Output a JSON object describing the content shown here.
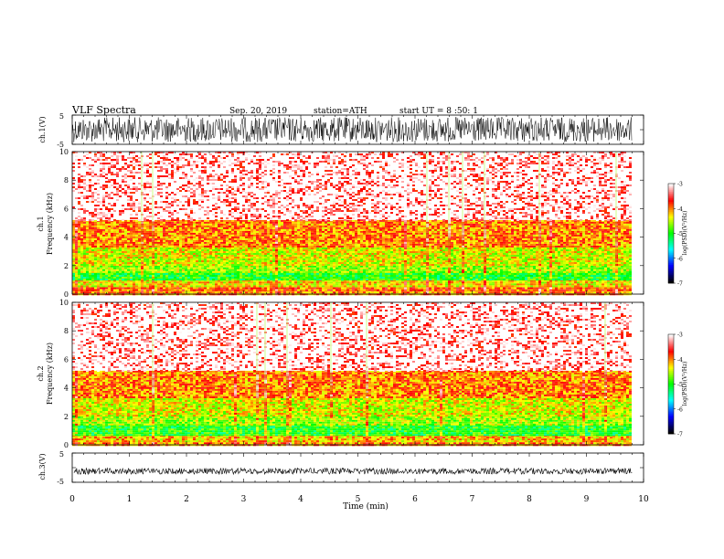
{
  "header": {
    "title": "VLF Spectra",
    "date": "Sep. 20, 2019",
    "station": "station=ATH",
    "start": "start UT = 8 :50: 1"
  },
  "chart_data": [
    {
      "type": "line",
      "ylabel": "ch.1(V)",
      "yticks": [
        "5",
        "-5"
      ],
      "ylim": [
        -5,
        5
      ],
      "xlim": [
        0,
        10
      ],
      "data_xlim": [
        0,
        9.8
      ],
      "description_of_values": "dense noise signal",
      "amplitude": 4.5
    },
    {
      "type": "heatmap",
      "ylabel_top": "ch.1",
      "ylabel": "Frequency (kHz)",
      "ylim": [
        0,
        10
      ],
      "yticks": [
        "0",
        "2",
        "4",
        "6",
        "8",
        "10"
      ],
      "xlim": [
        0,
        9.8
      ],
      "bands": [
        {
          "from": 0.0,
          "to": 0.3,
          "level": -4.0
        },
        {
          "from": 0.3,
          "to": 0.6,
          "level": -3.9
        },
        {
          "from": 0.6,
          "to": 1.0,
          "level": -4.3
        },
        {
          "from": 1.0,
          "to": 1.6,
          "level": -5.0
        },
        {
          "from": 1.6,
          "to": 2.0,
          "level": -4.6
        },
        {
          "from": 2.0,
          "to": 3.4,
          "level": -4.4
        },
        {
          "from": 3.4,
          "to": 5.2,
          "level": -4.0
        },
        {
          "from": 5.2,
          "to": 10.0,
          "level": -3.4
        }
      ],
      "colorbar": {
        "label": "log(PSD)(V²/Hz)",
        "range": [
          -7,
          -3
        ],
        "ticks": [
          "-3",
          "-4",
          "-5",
          "-6",
          "-7"
        ]
      }
    },
    {
      "type": "heatmap",
      "ylabel_top": "ch.2",
      "ylabel": "Frequency (kHz)",
      "ylim": [
        0,
        10
      ],
      "yticks": [
        "0",
        "2",
        "4",
        "6",
        "8",
        "10"
      ],
      "xlim": [
        0,
        9.8
      ],
      "bands": [
        {
          "from": 0.0,
          "to": 0.3,
          "level": -4.0
        },
        {
          "from": 0.3,
          "to": 0.7,
          "level": -4.2
        },
        {
          "from": 0.7,
          "to": 1.4,
          "level": -5.0
        },
        {
          "from": 1.4,
          "to": 2.0,
          "level": -4.6
        },
        {
          "from": 2.0,
          "to": 3.4,
          "level": -4.4
        },
        {
          "from": 3.4,
          "to": 5.2,
          "level": -4.0
        },
        {
          "from": 5.2,
          "to": 10.0,
          "level": -3.4
        }
      ],
      "colorbar": {
        "label": "log(PSD)(V²/Hz)",
        "range": [
          -7,
          -3
        ],
        "ticks": [
          "-3",
          "-4",
          "-5",
          "-6",
          "-7"
        ]
      }
    },
    {
      "type": "line",
      "ylabel": "ch.3(V)",
      "yticks": [
        "5",
        "-5"
      ],
      "ylim": [
        -5,
        5
      ],
      "xlim": [
        0,
        10
      ],
      "data_xlim": [
        0,
        9.8
      ],
      "level": -1.2,
      "amplitude": 0.35
    }
  ],
  "xaxis": {
    "label": "Time (min)",
    "ticks": [
      "0",
      "1",
      "2",
      "3",
      "4",
      "5",
      "6",
      "7",
      "8",
      "9",
      "10"
    ]
  },
  "colorscale": [
    "#000000",
    "#0000ff",
    "#00ffff",
    "#00ff00",
    "#ffff00",
    "#ff0000",
    "#ffffff"
  ]
}
